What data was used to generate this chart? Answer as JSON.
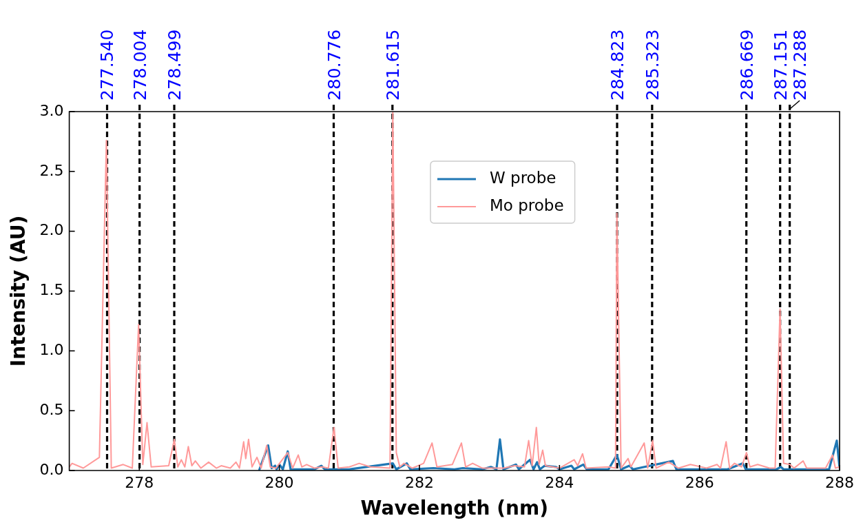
{
  "chart_data": {
    "type": "line",
    "xlabel": "Wavelength (nm)",
    "ylabel": "Intensity (AU)",
    "xlim": [
      277,
      288
    ],
    "xticks": [
      278,
      280,
      282,
      284,
      286,
      288
    ],
    "ylim": [
      0,
      3.0
    ],
    "yticks": [
      {
        "value": 0,
        "label": "0.0"
      },
      {
        "value": 0.5,
        "label": "0.5"
      },
      {
        "value": 1,
        "label": "1.0"
      },
      {
        "value": 1.5,
        "label": "1.5"
      },
      {
        "value": 2,
        "label": "2.0"
      },
      {
        "value": 2.5,
        "label": "2.5"
      },
      {
        "value": 3,
        "label": "3.0"
      }
    ],
    "grid": false,
    "legend": "top",
    "marker": "none",
    "line_style": "solid",
    "series": [
      {
        "name": "W probe",
        "color": "#1f77b4",
        "x": [
          279.71,
          279.84,
          279.89,
          279.94,
          279.96,
          280.0,
          280.05,
          280.12,
          280.16,
          280.5,
          280.6,
          280.65,
          281.0,
          281.62,
          281.67,
          281.82,
          281.87,
          282.2,
          282.5,
          282.62,
          282.9,
          283.02,
          283.1,
          283.15,
          283.2,
          283.38,
          283.42,
          283.58,
          283.63,
          283.68,
          283.72,
          283.79,
          283.95,
          284.0,
          284.17,
          284.21,
          284.34,
          284.39,
          284.7,
          284.82,
          284.88,
          285.0,
          285.05,
          285.62,
          285.67,
          286.4,
          286.62,
          286.66,
          287.1,
          287.16,
          287.2,
          287.85,
          287.96,
          288.0
        ],
        "values": [
          0.0,
          0.21,
          0.02,
          0.04,
          0.01,
          0.05,
          0.01,
          0.16,
          0.01,
          0.01,
          0.04,
          0.01,
          0.01,
          0.06,
          0.01,
          0.06,
          0.01,
          0.02,
          0.01,
          0.02,
          0.01,
          0.03,
          0.01,
          0.26,
          0.01,
          0.05,
          0.01,
          0.09,
          0.01,
          0.07,
          0.01,
          0.04,
          0.03,
          0.01,
          0.04,
          0.01,
          0.05,
          0.01,
          0.01,
          0.13,
          0.01,
          0.04,
          0.01,
          0.08,
          0.01,
          0.01,
          0.06,
          0.01,
          0.01,
          0.03,
          0.01,
          0.01,
          0.25,
          0.02
        ]
      },
      {
        "name": "Mo probe",
        "color": "#ff9999",
        "x": [
          277.0,
          277.04,
          277.2,
          277.43,
          277.53,
          277.6,
          277.77,
          277.9,
          277.99,
          278.05,
          278.11,
          278.17,
          278.42,
          278.5,
          278.55,
          278.6,
          278.65,
          278.7,
          278.75,
          278.8,
          278.88,
          278.99,
          279.1,
          279.17,
          279.3,
          279.38,
          279.43,
          279.49,
          279.52,
          279.56,
          279.61,
          279.68,
          279.74,
          279.82,
          279.87,
          279.95,
          280.12,
          280.19,
          280.27,
          280.32,
          280.39,
          280.5,
          280.61,
          280.7,
          280.78,
          280.84,
          281.0,
          281.14,
          281.3,
          281.58,
          281.62,
          281.67,
          281.72,
          281.78,
          281.9,
          282.06,
          282.18,
          282.25,
          282.47,
          282.6,
          282.66,
          282.76,
          282.9,
          283.2,
          283.36,
          283.5,
          283.56,
          283.61,
          283.67,
          283.71,
          283.76,
          283.8,
          284.0,
          284.21,
          284.26,
          284.33,
          284.38,
          284.7,
          284.8,
          284.82,
          284.88,
          284.98,
          285.02,
          285.21,
          285.26,
          285.33,
          285.38,
          285.56,
          285.7,
          285.87,
          286.1,
          286.25,
          286.3,
          286.38,
          286.43,
          286.5,
          286.6,
          286.67,
          286.72,
          286.83,
          287.0,
          287.08,
          287.15,
          287.2,
          287.29,
          287.35,
          287.48,
          287.53,
          287.8,
          287.9,
          287.94,
          288.0
        ],
        "values": [
          0.03,
          0.06,
          0.02,
          0.11,
          2.76,
          0.02,
          0.05,
          0.02,
          1.22,
          0.05,
          0.4,
          0.03,
          0.04,
          0.26,
          0.03,
          0.09,
          0.03,
          0.2,
          0.04,
          0.08,
          0.02,
          0.07,
          0.02,
          0.04,
          0.02,
          0.07,
          0.02,
          0.24,
          0.1,
          0.26,
          0.03,
          0.11,
          0.02,
          0.21,
          0.03,
          0.02,
          0.15,
          0.02,
          0.13,
          0.03,
          0.05,
          0.02,
          0.03,
          0.02,
          0.36,
          0.02,
          0.03,
          0.06,
          0.03,
          0.02,
          3.0,
          0.15,
          0.03,
          0.06,
          0.02,
          0.06,
          0.23,
          0.03,
          0.05,
          0.23,
          0.03,
          0.06,
          0.02,
          0.02,
          0.04,
          0.03,
          0.25,
          0.04,
          0.36,
          0.05,
          0.17,
          0.04,
          0.02,
          0.09,
          0.04,
          0.14,
          0.02,
          0.03,
          0.02,
          2.15,
          0.02,
          0.1,
          0.03,
          0.23,
          0.02,
          0.25,
          0.02,
          0.07,
          0.02,
          0.05,
          0.02,
          0.05,
          0.02,
          0.24,
          0.02,
          0.06,
          0.03,
          0.15,
          0.03,
          0.05,
          0.02,
          0.02,
          1.35,
          0.06,
          0.05,
          0.02,
          0.08,
          0.02,
          0.02,
          0.13,
          0.02,
          0.03
        ]
      }
    ],
    "ref_lines": [
      {
        "axis": "x",
        "value": 277.54,
        "label": "277.540",
        "color": "#000000",
        "line_style": "dashed"
      },
      {
        "axis": "x",
        "value": 278.004,
        "label": "278.004",
        "color": "#000000",
        "line_style": "dashed"
      },
      {
        "axis": "x",
        "value": 278.499,
        "label": "278.499",
        "color": "#000000",
        "line_style": "dashed"
      },
      {
        "axis": "x",
        "value": 280.776,
        "label": "280.776",
        "color": "#000000",
        "line_style": "dashed"
      },
      {
        "axis": "x",
        "value": 281.615,
        "label": "281.615",
        "color": "#000000",
        "line_style": "dashed"
      },
      {
        "axis": "x",
        "value": 284.823,
        "label": "284.823",
        "color": "#000000",
        "line_style": "dashed"
      },
      {
        "axis": "x",
        "value": 285.323,
        "label": "285.323",
        "color": "#000000",
        "line_style": "dashed"
      },
      {
        "axis": "x",
        "value": 286.669,
        "label": "286.669",
        "color": "#000000",
        "line_style": "dashed"
      },
      {
        "axis": "x",
        "value": 287.151,
        "label": "287.151",
        "color": "#000000",
        "line_style": "dashed"
      },
      {
        "axis": "x",
        "value": 287.288,
        "label": "287.288",
        "color": "#000000",
        "line_style": "dashed"
      }
    ]
  }
}
